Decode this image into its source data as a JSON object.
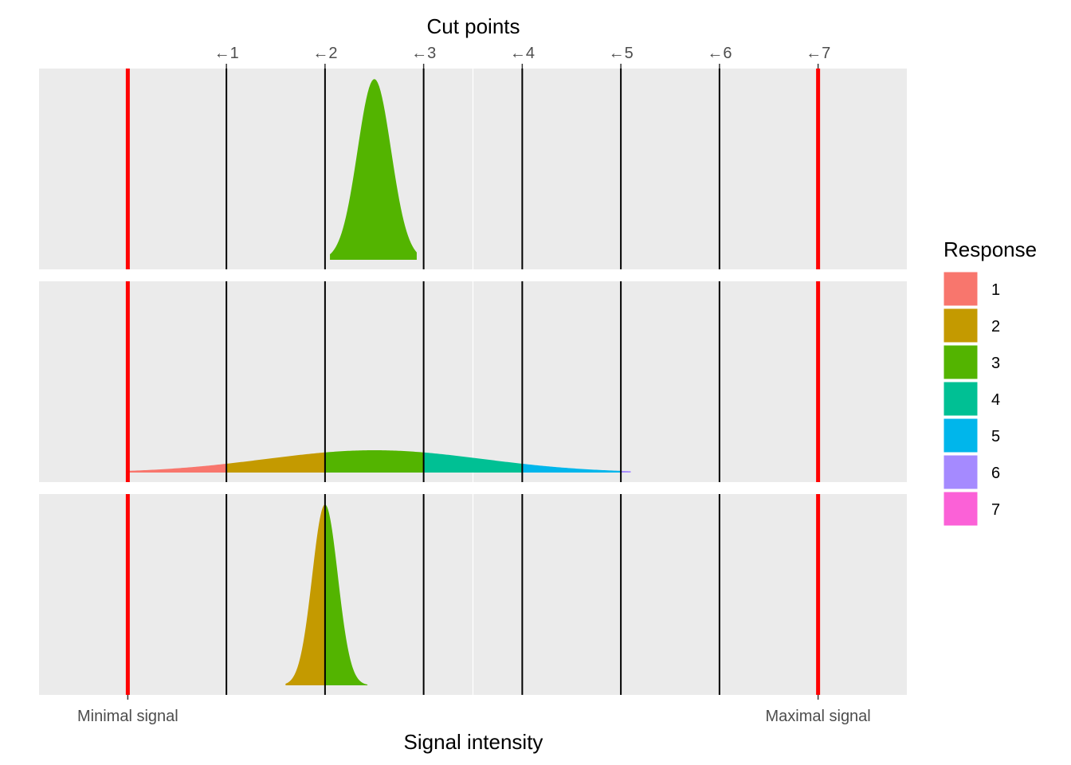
{
  "chart_data": {
    "type": "area",
    "top_axis": {
      "title": "Cut points",
      "tick_labels": [
        "←1",
        "←2",
        "←3",
        "←4",
        "←5",
        "←6",
        "←7"
      ],
      "tick_values": [
        1,
        2,
        3,
        4,
        5,
        6,
        7
      ]
    },
    "bottom_axis": {
      "title": "Signal intensity",
      "tick_labels": [
        "Minimal signal",
        "Maximal signal"
      ],
      "tick_values": [
        0,
        7
      ]
    },
    "xlim": [
      -0.9,
      7.9
    ],
    "boundaries": [
      0,
      7
    ],
    "cut_points": [
      1,
      2,
      3,
      4,
      5,
      6
    ],
    "grid": true,
    "legend": {
      "title": "Response",
      "position": "right",
      "items": [
        "1",
        "2",
        "3",
        "4",
        "5",
        "6",
        "7"
      ]
    },
    "response_colors": [
      "#F8766D",
      "#C49A00",
      "#53B400",
      "#00C094",
      "#00B6EB",
      "#A58AFF",
      "#FB61D7"
    ],
    "boundary_color": "#FF0000",
    "cut_color": "#000000",
    "panel_background": "#EBEBEB",
    "panels": [
      {
        "mean": 2.5,
        "sd": 0.17,
        "x_range": [
          2.05,
          2.93
        ]
      },
      {
        "mean": 2.5,
        "sd": 1.1,
        "x_range": [
          0.0,
          5.1
        ]
      },
      {
        "mean": 2.0,
        "sd": 0.13,
        "x_range": [
          1.6,
          2.43
        ]
      }
    ]
  }
}
